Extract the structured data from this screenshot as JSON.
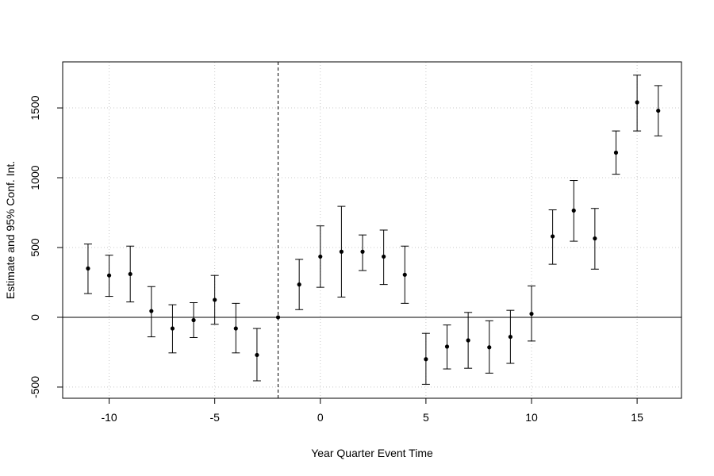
{
  "chart_data": {
    "type": "scatter",
    "xlabel": "Year Quarter Event Time",
    "ylabel": "Estimate and 95% Conf. Int.",
    "xlim": [
      -12.2,
      17.1
    ],
    "ylim": [
      -580,
      1830
    ],
    "xticks": [
      -10,
      -5,
      0,
      5,
      10,
      15
    ],
    "yticks": [
      -500,
      0,
      500,
      1000,
      1500
    ],
    "grid": true,
    "reference_vline_x": -2,
    "reference_hline_y": 0,
    "series": [
      {
        "points": [
          {
            "x": -11,
            "est": 350,
            "lo": 170,
            "hi": 525
          },
          {
            "x": -10,
            "est": 300,
            "lo": 150,
            "hi": 445
          },
          {
            "x": -9,
            "est": 310,
            "lo": 110,
            "hi": 510
          },
          {
            "x": -8,
            "est": 45,
            "lo": -140,
            "hi": 220
          },
          {
            "x": -7,
            "est": -80,
            "lo": -255,
            "hi": 90
          },
          {
            "x": -6,
            "est": -20,
            "lo": -145,
            "hi": 105
          },
          {
            "x": -5,
            "est": 125,
            "lo": -50,
            "hi": 300
          },
          {
            "x": -4,
            "est": -80,
            "lo": -255,
            "hi": 100
          },
          {
            "x": -3,
            "est": -270,
            "lo": -455,
            "hi": -80
          },
          {
            "x": -2,
            "est": 0,
            "lo": 0,
            "hi": 0
          },
          {
            "x": -1,
            "est": 235,
            "lo": 55,
            "hi": 415
          },
          {
            "x": 0,
            "est": 435,
            "lo": 215,
            "hi": 655
          },
          {
            "x": 1,
            "est": 470,
            "lo": 145,
            "hi": 795
          },
          {
            "x": 2,
            "est": 470,
            "lo": 335,
            "hi": 590
          },
          {
            "x": 3,
            "est": 435,
            "lo": 235,
            "hi": 625
          },
          {
            "x": 4,
            "est": 305,
            "lo": 100,
            "hi": 510
          },
          {
            "x": 5,
            "est": -300,
            "lo": -480,
            "hi": -115
          },
          {
            "x": 6,
            "est": -210,
            "lo": -370,
            "hi": -55
          },
          {
            "x": 7,
            "est": -165,
            "lo": -365,
            "hi": 35
          },
          {
            "x": 8,
            "est": -215,
            "lo": -400,
            "hi": -25
          },
          {
            "x": 9,
            "est": -140,
            "lo": -330,
            "hi": 50
          },
          {
            "x": 10,
            "est": 25,
            "lo": -170,
            "hi": 225
          },
          {
            "x": 11,
            "est": 580,
            "lo": 380,
            "hi": 770
          },
          {
            "x": 12,
            "est": 765,
            "lo": 545,
            "hi": 980
          },
          {
            "x": 13,
            "est": 565,
            "lo": 345,
            "hi": 780
          },
          {
            "x": 14,
            "est": 1180,
            "lo": 1025,
            "hi": 1335
          },
          {
            "x": 15,
            "est": 1540,
            "lo": 1335,
            "hi": 1735
          },
          {
            "x": 16,
            "est": 1480,
            "lo": 1300,
            "hi": 1660
          }
        ]
      }
    ]
  }
}
